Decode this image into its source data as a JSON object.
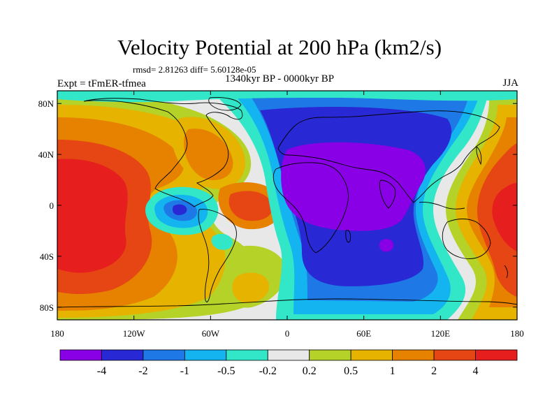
{
  "title": "Velocity Potential at 200 hPa (km2/s)",
  "stats_line": "rmsd= 2.81263 diff= 5.60128e-05",
  "left_label": "Expt = tFmER-tfmea",
  "center_label": "1340kyr BP - 0000kyr BP",
  "right_label": "JJA",
  "map": {
    "projection": "cylindrical equidistant",
    "lon_range": [
      -180,
      180
    ],
    "lat_range": [
      -90,
      90
    ],
    "lat_ticks": [
      {
        "label": "80N",
        "lat": 80
      },
      {
        "label": "40N",
        "lat": 40
      },
      {
        "label": "0",
        "lat": 0
      },
      {
        "label": "40S",
        "lat": -40
      },
      {
        "label": "80S",
        "lat": -80
      }
    ],
    "lon_ticks": [
      {
        "label": "180",
        "lon": -180
      },
      {
        "label": "120W",
        "lon": -120
      },
      {
        "label": "60W",
        "lon": -60
      },
      {
        "label": "0",
        "lon": 0
      },
      {
        "label": "60E",
        "lon": 60
      },
      {
        "label": "120E",
        "lon": 120
      },
      {
        "label": "180",
        "lon": 180
      }
    ]
  },
  "colorbar": {
    "colors": [
      "#8a00e6",
      "#2828d4",
      "#1e78e6",
      "#14b4f0",
      "#32e6c8",
      "#e8e8e8",
      "#b4d228",
      "#e6b400",
      "#e68200",
      "#e64614",
      "#e61e1e"
    ],
    "labels": [
      "-4",
      "-2",
      "-1",
      "-0.5",
      "-0.2",
      "0.2",
      "0.5",
      "1",
      "2",
      "4"
    ]
  },
  "field_colors": {
    "lvl_neg5": "#8a00e6",
    "lvl_neg4": "#2828d4",
    "lvl_neg3": "#1e78e6",
    "lvl_neg2": "#14b4f0",
    "lvl_neg1": "#32e6c8",
    "lvl_zero": "#e8e8e8",
    "lvl_pos1": "#b4d228",
    "lvl_pos2": "#e6b400",
    "lvl_pos3": "#e68200",
    "lvl_pos4": "#e64614",
    "lvl_pos5": "#e61e1e"
  }
}
